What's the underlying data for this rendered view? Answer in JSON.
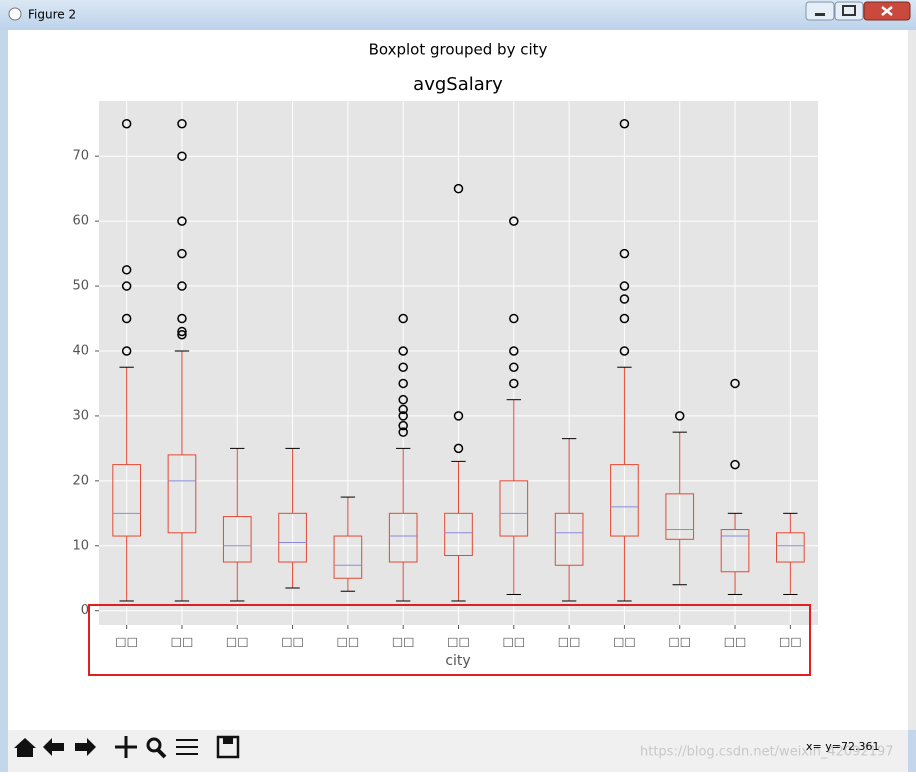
{
  "window": {
    "title": "Figure 2",
    "status": "x= y=72.361",
    "watermark": "https://blog.csdn.net/weixin_42092197"
  },
  "chart_data": {
    "type": "boxplot",
    "suptitle": "Boxplot grouped by city",
    "title": "avgSalary",
    "x_label": "city",
    "box_color": "#e24a33",
    "median_color": "#8b8bd8",
    "grid": true,
    "categories": [
      "□□",
      "□□",
      "□□",
      "□□",
      "□□",
      "□□",
      "□□",
      "□□",
      "□□",
      "□□",
      "□□",
      "□□",
      "□□"
    ],
    "boxes": [
      {
        "whislo": 1.5,
        "q1": 11.5,
        "med": 15,
        "q3": 22.5,
        "whishi": 37.5,
        "fliers": [
          40,
          45,
          50,
          52.5,
          75
        ]
      },
      {
        "whislo": 1.5,
        "q1": 12,
        "med": 20,
        "q3": 24,
        "whishi": 40,
        "fliers": [
          42.5,
          43,
          45,
          50,
          55,
          60,
          70,
          75
        ]
      },
      {
        "whislo": 1.5,
        "q1": 7.5,
        "med": 10,
        "q3": 14.5,
        "whishi": 25,
        "fliers": []
      },
      {
        "whislo": 3.5,
        "q1": 7.5,
        "med": 10.5,
        "q3": 15,
        "whishi": 25,
        "fliers": []
      },
      {
        "whislo": 3,
        "q1": 5,
        "med": 7,
        "q3": 11.5,
        "whishi": 17.5,
        "fliers": []
      },
      {
        "whislo": 1.5,
        "q1": 7.5,
        "med": 11.5,
        "q3": 15,
        "whishi": 25,
        "fliers": [
          27.5,
          28.5,
          30,
          31,
          32.5,
          35,
          37.5,
          40,
          45
        ]
      },
      {
        "whislo": 1.5,
        "q1": 8.5,
        "med": 12,
        "q3": 15,
        "whishi": 23,
        "fliers": [
          25,
          30,
          65
        ]
      },
      {
        "whislo": 2.5,
        "q1": 11.5,
        "med": 15,
        "q3": 20,
        "whishi": 32.5,
        "fliers": [
          35,
          37.5,
          40,
          45,
          60
        ]
      },
      {
        "whislo": 1.5,
        "q1": 7,
        "med": 12,
        "q3": 15,
        "whishi": 26.5,
        "fliers": []
      },
      {
        "whislo": 1.5,
        "q1": 11.5,
        "med": 16,
        "q3": 22.5,
        "whishi": 37.5,
        "fliers": [
          40,
          45,
          48,
          50,
          55,
          75
        ]
      },
      {
        "whislo": 4,
        "q1": 11,
        "med": 12.5,
        "q3": 18,
        "whishi": 27.5,
        "fliers": [
          30
        ]
      },
      {
        "whislo": 2.5,
        "q1": 6,
        "med": 11.5,
        "q3": 12.5,
        "whishi": 15,
        "fliers": [
          22.5,
          35
        ]
      },
      {
        "whislo": 2.5,
        "q1": 7.5,
        "med": 10,
        "q3": 12,
        "whishi": 15,
        "fliers": []
      }
    ],
    "ylim": [
      -2.2,
      78.5
    ],
    "yticks": [
      0,
      10,
      20,
      30,
      40,
      50,
      60,
      70
    ]
  }
}
